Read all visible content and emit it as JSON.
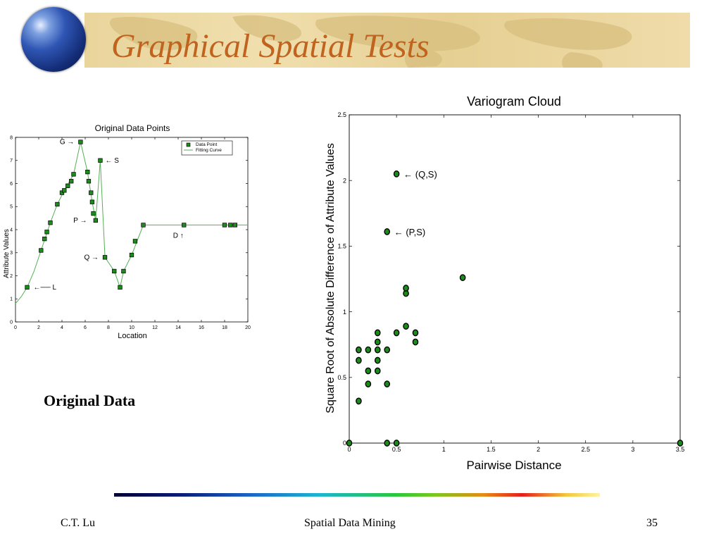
{
  "slide": {
    "title": "Graphical Spatial Tests",
    "original_label": "Original Data",
    "footer": {
      "author": "C.T. Lu",
      "course": "Spatial Data Mining",
      "page": "35"
    }
  },
  "colors": {
    "title": "#c0631e",
    "marker_fill": "#1a8c1a",
    "curve": "#55b055",
    "banner": "#ecd8a0"
  },
  "chart_data": [
    {
      "type": "line",
      "title": "Original Data Points",
      "xlabel": "Location",
      "ylabel": "Attribute Values",
      "xlim": [
        0,
        20
      ],
      "ylim": [
        0,
        8
      ],
      "xticks": [
        0,
        2,
        4,
        6,
        8,
        10,
        12,
        14,
        16,
        18,
        20
      ],
      "yticks": [
        0,
        1,
        2,
        3,
        4,
        5,
        6,
        7,
        8
      ],
      "legend": {
        "placement": "top-right",
        "entries": [
          "Data Point",
          "Fitting Curve"
        ]
      },
      "series": [
        {
          "name": "Data Point",
          "points": [
            [
              1.0,
              1.5
            ],
            [
              2.2,
              3.1
            ],
            [
              2.5,
              3.6
            ],
            [
              2.7,
              3.9
            ],
            [
              3.0,
              4.3
            ],
            [
              3.6,
              5.1
            ],
            [
              4.0,
              5.6
            ],
            [
              4.2,
              5.7
            ],
            [
              4.5,
              5.9
            ],
            [
              4.8,
              6.1
            ],
            [
              5.0,
              6.4
            ],
            [
              5.6,
              7.8
            ],
            [
              6.2,
              6.5
            ],
            [
              6.3,
              6.1
            ],
            [
              6.5,
              5.6
            ],
            [
              6.6,
              5.2
            ],
            [
              6.7,
              4.7
            ],
            [
              6.9,
              4.4
            ],
            [
              7.3,
              7.0
            ],
            [
              7.7,
              2.8
            ],
            [
              8.5,
              2.2
            ],
            [
              9.0,
              1.5
            ],
            [
              9.3,
              2.2
            ],
            [
              10.0,
              2.9
            ],
            [
              10.3,
              3.5
            ],
            [
              11.0,
              4.2
            ],
            [
              14.5,
              4.2
            ],
            [
              18.0,
              4.2
            ],
            [
              18.5,
              4.2
            ],
            [
              18.9,
              4.2
            ]
          ]
        },
        {
          "name": "Fitting Curve",
          "points": [
            [
              0,
              0.8
            ],
            [
              0.5,
              1.1
            ],
            [
              1.0,
              1.5
            ],
            [
              1.6,
              2.2
            ],
            [
              2.2,
              3.1
            ],
            [
              3.0,
              4.3
            ],
            [
              3.6,
              5.1
            ],
            [
              4.2,
              5.7
            ],
            [
              5.0,
              6.4
            ],
            [
              5.6,
              7.8
            ],
            [
              6.2,
              6.5
            ],
            [
              6.6,
              5.2
            ],
            [
              6.9,
              4.4
            ],
            [
              7.3,
              7.0
            ],
            [
              7.7,
              2.8
            ],
            [
              8.5,
              2.2
            ],
            [
              9.0,
              1.5
            ],
            [
              9.3,
              2.2
            ],
            [
              10.0,
              2.9
            ],
            [
              11.0,
              4.2
            ],
            [
              14.5,
              4.2
            ],
            [
              20.0,
              4.2
            ]
          ]
        }
      ],
      "annotations": [
        {
          "text": "G",
          "x": 5.6,
          "y": 7.8,
          "arrow": "→",
          "side": "left"
        },
        {
          "text": "S",
          "x": 7.3,
          "y": 7.0,
          "arrow": "←",
          "side": "right"
        },
        {
          "text": "P",
          "x": 6.7,
          "y": 4.4,
          "arrow": "→",
          "side": "left"
        },
        {
          "text": "Q",
          "x": 7.7,
          "y": 2.8,
          "arrow": "→",
          "side": "left"
        },
        {
          "text": "D",
          "x": 14.5,
          "y": 4.2,
          "arrow": "↑",
          "side": "below"
        },
        {
          "text": "L",
          "x": 1.0,
          "y": 1.5,
          "arrow": "←",
          "side": "right"
        }
      ]
    },
    {
      "type": "scatter",
      "title": "Variogram Cloud",
      "xlabel": "Pairwise Distance",
      "ylabel": "Square Root of Absolute Difference of Attribute Values",
      "xlim": [
        0,
        3.5
      ],
      "ylim": [
        0,
        2.5
      ],
      "xticks": [
        0,
        0.5,
        1,
        1.5,
        2,
        2.5,
        3,
        3.5
      ],
      "yticks": [
        0,
        0.5,
        1,
        1.5,
        2,
        2.5
      ],
      "series": [
        {
          "points": [
            [
              0,
              0
            ],
            [
              0.4,
              0
            ],
            [
              0.5,
              0
            ],
            [
              3.5,
              0
            ],
            [
              0.1,
              0.32
            ],
            [
              0.2,
              0.45
            ],
            [
              0.4,
              0.45
            ],
            [
              0.2,
              0.55
            ],
            [
              0.3,
              0.55
            ],
            [
              0.1,
              0.63
            ],
            [
              0.3,
              0.63
            ],
            [
              0.1,
              0.71
            ],
            [
              0.2,
              0.71
            ],
            [
              0.3,
              0.71
            ],
            [
              0.4,
              0.71
            ],
            [
              0.3,
              0.77
            ],
            [
              0.7,
              0.77
            ],
            [
              0.3,
              0.84
            ],
            [
              0.5,
              0.84
            ],
            [
              0.7,
              0.84
            ],
            [
              0.6,
              0.89
            ],
            [
              0.6,
              1.14
            ],
            [
              0.6,
              1.18
            ],
            [
              1.2,
              1.26
            ],
            [
              0.4,
              1.61
            ],
            [
              0.5,
              2.05
            ]
          ]
        }
      ],
      "annotations": [
        {
          "text": "(Q,S)",
          "x": 0.5,
          "y": 2.05,
          "arrow": "←"
        },
        {
          "text": "(P,S)",
          "x": 0.4,
          "y": 1.61,
          "arrow": "←"
        }
      ]
    }
  ]
}
